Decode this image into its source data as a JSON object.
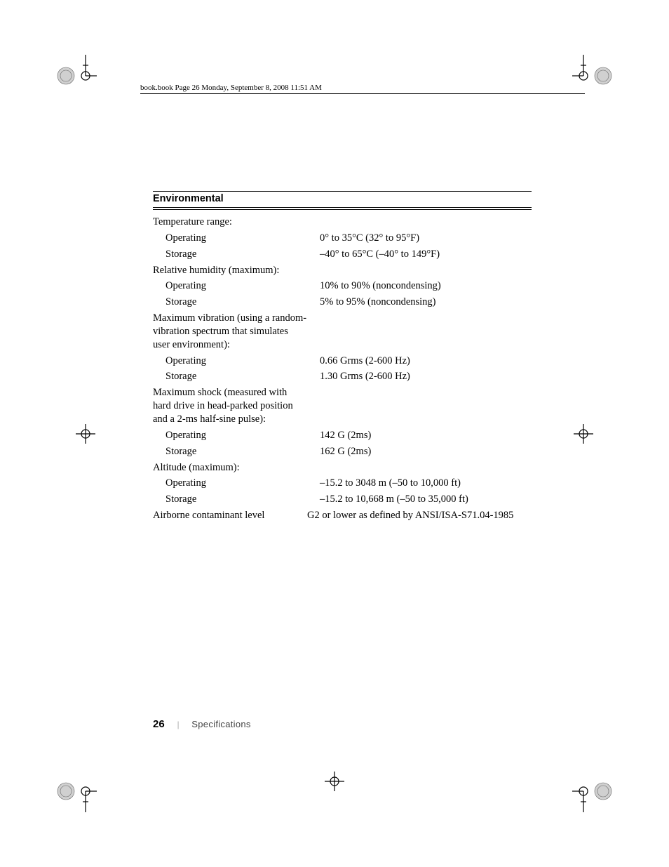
{
  "header": {
    "text": "book.book  Page 26  Monday, September 8, 2008  11:51 AM"
  },
  "section": {
    "title": "Environmental"
  },
  "rows": [
    {
      "label": "Temperature range:",
      "value": "",
      "sub": false
    },
    {
      "label": "Operating",
      "value": "0° to 35°C (32° to 95°F)",
      "sub": true
    },
    {
      "label": "Storage",
      "value": "–40° to 65°C (–40° to 149°F)",
      "sub": true
    },
    {
      "label": "Relative humidity (maximum):",
      "value": "",
      "sub": false
    },
    {
      "label": "Operating",
      "value": "10% to 90% (noncondensing)",
      "sub": true
    },
    {
      "label": "Storage",
      "value": "5% to 95% (noncondensing)",
      "sub": true
    },
    {
      "label": "Maximum vibration (using a random-vibration spectrum that simulates user environment):",
      "value": "",
      "sub": false
    },
    {
      "label": "Operating",
      "value": "0.66 Grms (2-600 Hz)",
      "sub": true
    },
    {
      "label": "Storage",
      "value": "1.30 Grms (2-600 Hz)",
      "sub": true
    },
    {
      "label": "Maximum shock (measured with hard drive in head-parked position and a 2-ms half-sine pulse):",
      "value": "",
      "sub": false
    },
    {
      "label": "Operating",
      "value": "142 G (2ms)",
      "sub": true
    },
    {
      "label": "Storage",
      "value": "162 G (2ms)",
      "sub": true
    },
    {
      "label": "Altitude (maximum):",
      "value": "",
      "sub": false
    },
    {
      "label": "Operating",
      "value": "–15.2 to 3048 m (–50 to 10,000 ft)",
      "sub": true
    },
    {
      "label": "Storage",
      "value": "–15.2 to 10,668 m (–50 to 35,000 ft)",
      "sub": true
    },
    {
      "label": "Airborne contaminant level",
      "value": "G2 or lower as defined by ANSI/ISA-S71.04-1985",
      "sub": false
    }
  ],
  "footer": {
    "page_number": "26",
    "section_name": "Specifications"
  },
  "crop_mark": {
    "stroke": "#000000",
    "fill_gray": "#cccccc"
  }
}
